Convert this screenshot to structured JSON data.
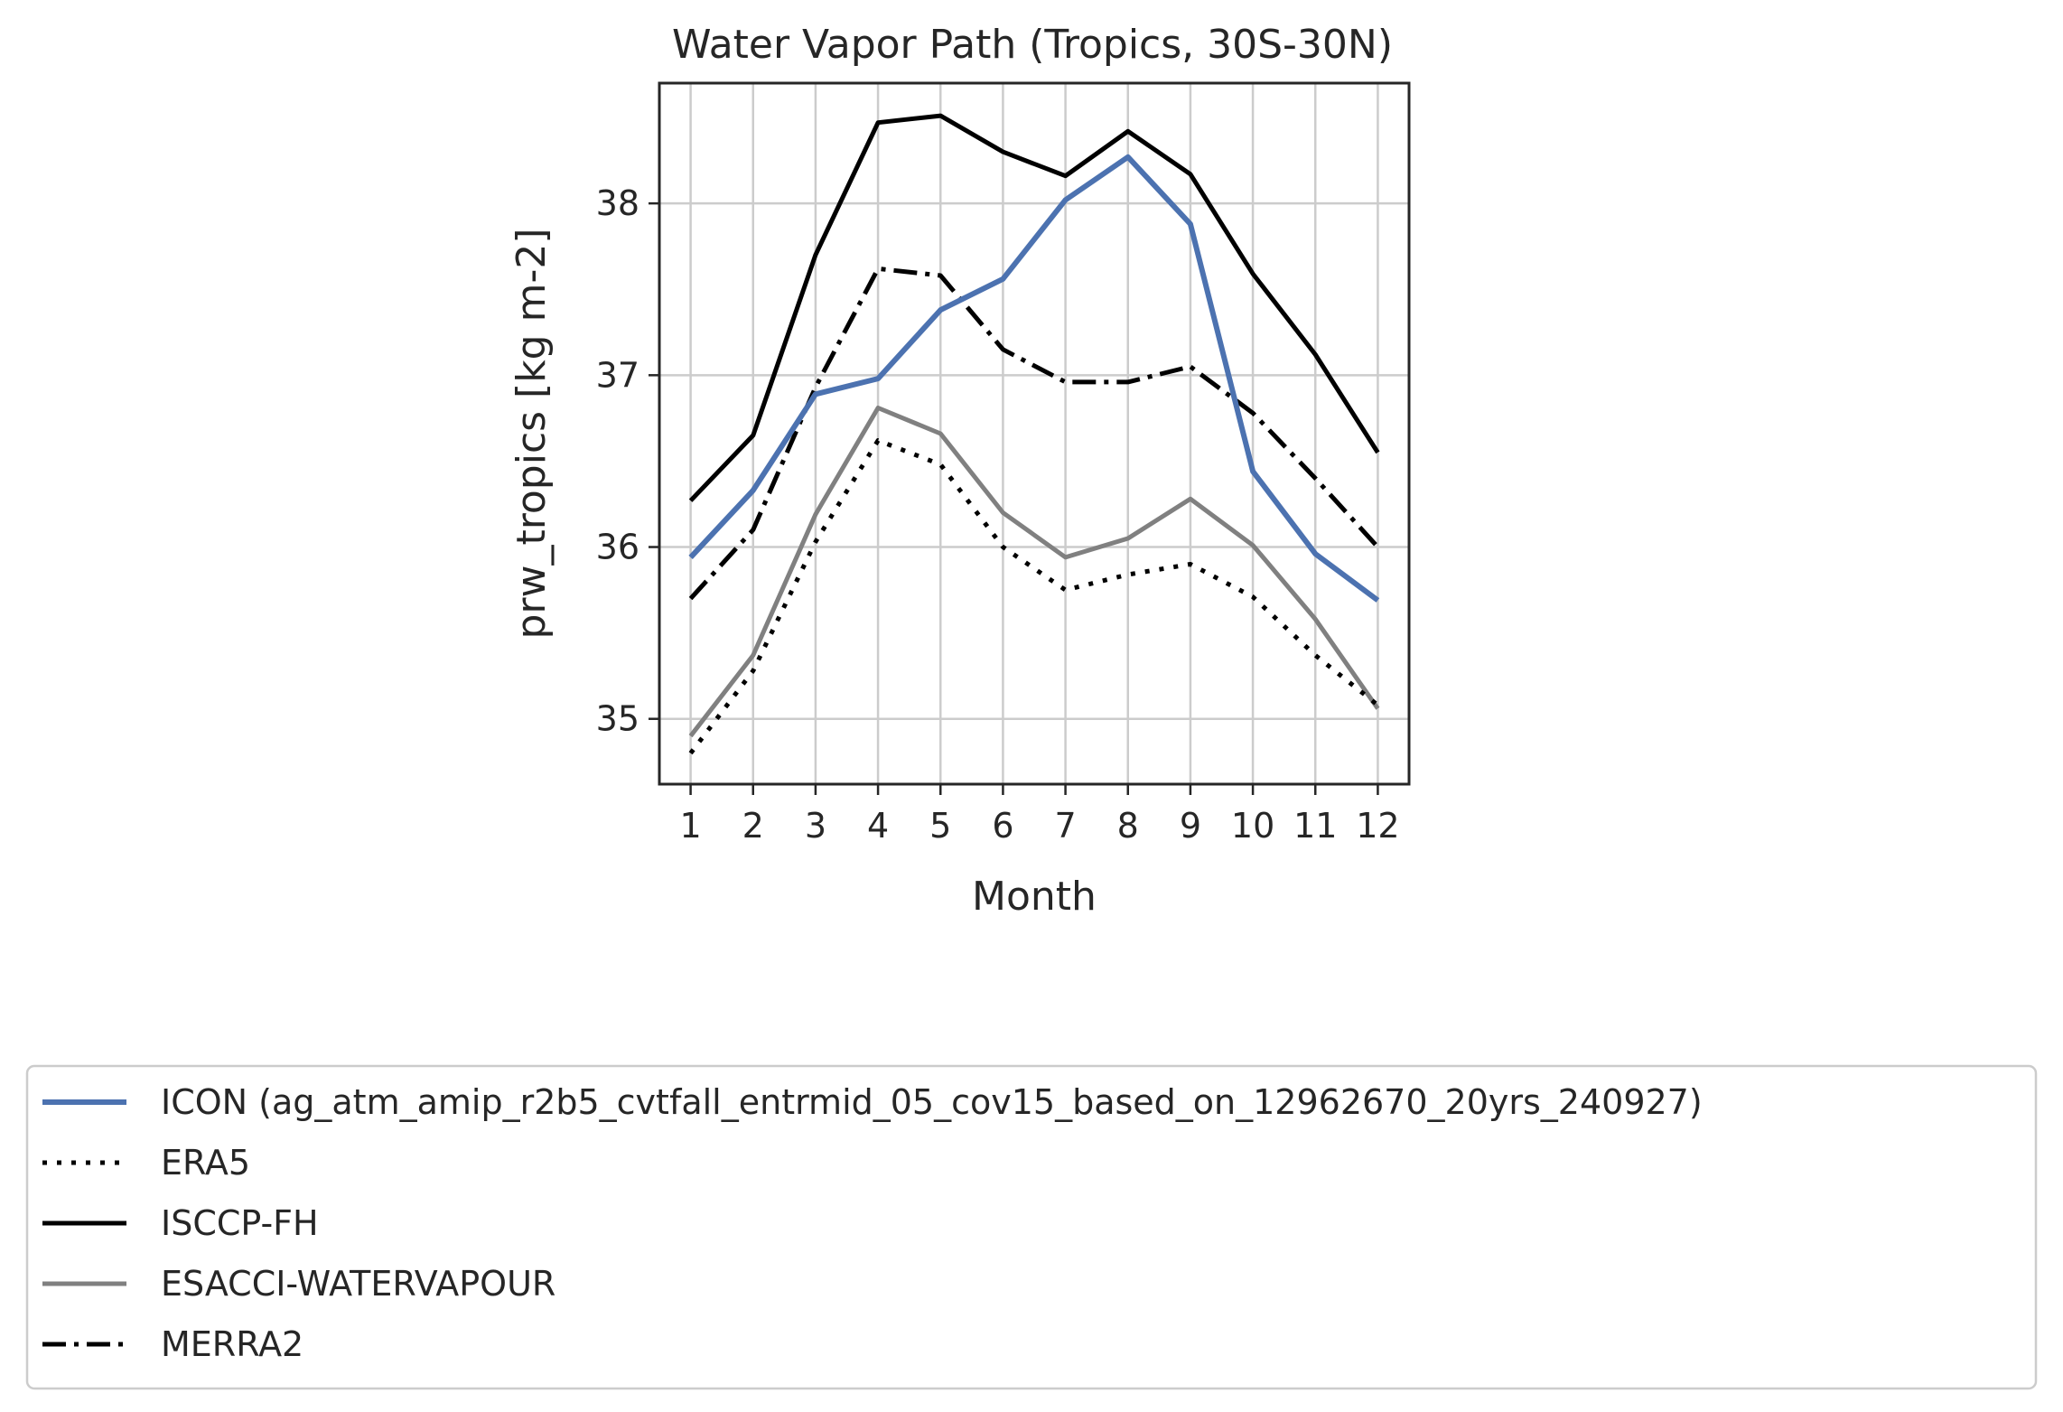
{
  "chart_data": {
    "type": "line",
    "title": "Water Vapor Path (Tropics, 30S-30N)",
    "xlabel": "Month",
    "ylabel": "prw_tropics [kg m-2]",
    "x": [
      1,
      2,
      3,
      4,
      5,
      6,
      7,
      8,
      9,
      10,
      11,
      12
    ],
    "xlim": [
      0.5,
      12.5
    ],
    "ylim": [
      34.62,
      38.7
    ],
    "yticks": [
      35,
      36,
      37,
      38
    ],
    "grid": true,
    "legend_position": "below",
    "series": [
      {
        "name": "ICON (ag_atm_amip_r2b5_cvtfall_entrmid_05_cov15_based_on_12962670_20yrs_240927)",
        "color": "#4c72b0",
        "style": "solid",
        "width": 6,
        "values": [
          35.94,
          36.33,
          36.89,
          36.98,
          37.38,
          37.56,
          38.02,
          38.27,
          37.88,
          36.44,
          35.96,
          35.69
        ]
      },
      {
        "name": "ERA5",
        "color": "#000000",
        "style": "dotted",
        "width": 5,
        "values": [
          34.8,
          35.28,
          36.03,
          36.62,
          36.48,
          36.0,
          35.75,
          35.84,
          35.9,
          35.71,
          35.37,
          35.08
        ]
      },
      {
        "name": "ISCCP-FH",
        "color": "#000000",
        "style": "solid",
        "width": 5,
        "values": [
          36.27,
          36.65,
          37.7,
          38.47,
          38.51,
          38.3,
          38.16,
          38.42,
          38.17,
          37.59,
          37.12,
          36.55
        ]
      },
      {
        "name": "ESACCI-WATERVAPOUR",
        "color": "#808080",
        "style": "solid",
        "width": 5,
        "values": [
          34.9,
          35.37,
          36.19,
          36.81,
          36.66,
          36.2,
          35.94,
          36.05,
          36.28,
          36.01,
          35.58,
          35.06
        ]
      },
      {
        "name": "MERRA2",
        "color": "#000000",
        "style": "dashdot",
        "width": 5,
        "values": [
          35.7,
          36.1,
          36.93,
          37.62,
          37.58,
          37.15,
          36.96,
          36.96,
          37.05,
          36.78,
          36.4,
          36.0
        ]
      }
    ]
  }
}
